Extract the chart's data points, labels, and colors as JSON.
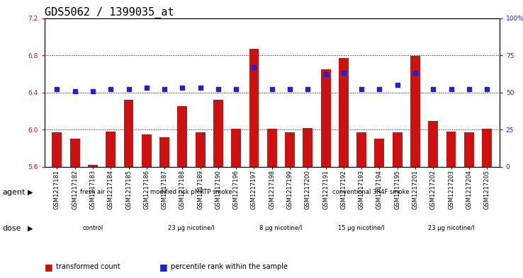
{
  "title": "GDS5062 / 1399035_at",
  "samples": [
    "GSM1217181",
    "GSM1217182",
    "GSM1217183",
    "GSM1217184",
    "GSM1217185",
    "GSM1217186",
    "GSM1217187",
    "GSM1217188",
    "GSM1217189",
    "GSM1217190",
    "GSM1217196",
    "GSM1217197",
    "GSM1217198",
    "GSM1217199",
    "GSM1217200",
    "GSM1217191",
    "GSM1217192",
    "GSM1217193",
    "GSM1217194",
    "GSM1217195",
    "GSM1217201",
    "GSM1217202",
    "GSM1217203",
    "GSM1217204",
    "GSM1217205"
  ],
  "bar_values": [
    5.97,
    5.9,
    5.62,
    5.98,
    6.32,
    5.95,
    5.92,
    6.25,
    5.97,
    6.32,
    6.01,
    6.87,
    6.01,
    5.97,
    6.02,
    6.65,
    6.77,
    5.97,
    5.9,
    5.97,
    6.79,
    6.09,
    5.98,
    5.97,
    6.01
  ],
  "dot_values": [
    52,
    51,
    51,
    52,
    52,
    53,
    52,
    53,
    53,
    52,
    52,
    67,
    52,
    52,
    52,
    62,
    63,
    52,
    52,
    55,
    63,
    52,
    52,
    52,
    52
  ],
  "ylim_left": [
    5.6,
    7.2
  ],
  "ylim_right": [
    0,
    100
  ],
  "yticks_left": [
    5.6,
    6.0,
    6.4,
    6.8,
    7.2
  ],
  "yticks_right": [
    0,
    25,
    50,
    75,
    100
  ],
  "hlines": [
    6.0,
    6.4,
    6.8
  ],
  "bar_color": "#cc1111",
  "dot_color": "#2222cc",
  "bar_width": 0.55,
  "agent_groups": [
    {
      "label": "fresh air",
      "start": 0,
      "end": 4,
      "color": "#aaeebb"
    },
    {
      "label": "modified risk pMRTP smoke",
      "start": 5,
      "end": 10,
      "color": "#66cc88"
    },
    {
      "label": "conventional 3R4F smoke",
      "start": 11,
      "end": 24,
      "color": "#44cc66"
    }
  ],
  "dose_groups": [
    {
      "label": "control",
      "start": 0,
      "end": 4,
      "color": "#dddddd"
    },
    {
      "label": "23 μg nicotine/l",
      "start": 5,
      "end": 10,
      "color": "#dd66cc"
    },
    {
      "label": "8 μg nicotine/l",
      "start": 11,
      "end": 14,
      "color": "#dd66cc"
    },
    {
      "label": "15 μg nicotine/l",
      "start": 15,
      "end": 19,
      "color": "#dd66cc"
    },
    {
      "label": "23 μg nicotine/l",
      "start": 20,
      "end": 24,
      "color": "#dd66cc"
    }
  ],
  "legend_items": [
    {
      "label": "transformed count",
      "color": "#cc1111"
    },
    {
      "label": "percentile rank within the sample",
      "color": "#2222cc"
    }
  ],
  "background_color": "#ffffff",
  "title_fontsize": 11,
  "tick_fontsize": 6.5,
  "label_fontsize": 8
}
